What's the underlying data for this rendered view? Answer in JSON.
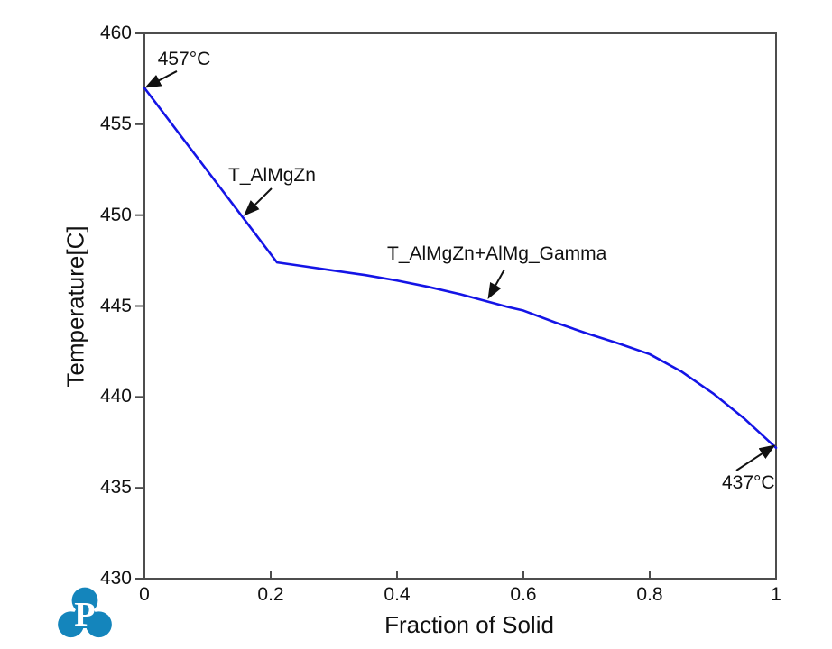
{
  "page": {
    "background": "#ffffff"
  },
  "chart_data": {
    "type": "line",
    "title": "",
    "xlabel": "Fraction of Solid",
    "ylabel": "Temperature[C]",
    "xlim": [
      0,
      1
    ],
    "ylim": [
      430,
      460
    ],
    "grid": false,
    "legend": "none",
    "axis_color": "#4d4d4d",
    "x_ticks": [
      {
        "value": 0,
        "label": "0"
      },
      {
        "value": 0.2,
        "label": "0.2"
      },
      {
        "value": 0.4,
        "label": "0.4"
      },
      {
        "value": 0.6,
        "label": "0.6"
      },
      {
        "value": 0.8,
        "label": "0.8"
      },
      {
        "value": 1,
        "label": "1"
      }
    ],
    "y_ticks": [
      {
        "value": 460,
        "label": "460"
      },
      {
        "value": 455,
        "label": "455"
      },
      {
        "value": 450,
        "label": "450"
      },
      {
        "value": 445,
        "label": "445"
      },
      {
        "value": 440,
        "label": "440"
      },
      {
        "value": 435,
        "label": "435"
      },
      {
        "value": 430,
        "label": "430"
      }
    ],
    "series": [
      {
        "name": "solidification-curve",
        "color": "#1414e6",
        "stroke_width": 2.6,
        "points": [
          [
            0.0,
            457.0
          ],
          [
            0.21,
            447.4
          ],
          [
            0.25,
            447.2
          ],
          [
            0.3,
            446.95
          ],
          [
            0.35,
            446.7
          ],
          [
            0.4,
            446.4
          ],
          [
            0.45,
            446.05
          ],
          [
            0.5,
            445.65
          ],
          [
            0.575,
            444.95
          ],
          [
            0.6,
            444.75
          ],
          [
            0.65,
            444.1
          ],
          [
            0.7,
            443.5
          ],
          [
            0.75,
            442.95
          ],
          [
            0.8,
            442.35
          ],
          [
            0.85,
            441.4
          ],
          [
            0.9,
            440.2
          ],
          [
            0.95,
            438.8
          ],
          [
            1.0,
            437.2
          ]
        ]
      }
    ],
    "annotations": [
      {
        "label": "457°C",
        "text_x": 0.021,
        "text_y": 459.16,
        "arrow_from": [
          0.0514,
          457.92
        ],
        "arrow_to": [
          0.0043,
          457.07
        ]
      },
      {
        "label": "T_AlMgZn",
        "text_x": 0.1329,
        "text_y": 452.76,
        "arrow_from": [
          0.2014,
          451.47
        ],
        "arrow_to": [
          0.16,
          450.05
        ]
      },
      {
        "label": "T_AlMgZn+AlMg_Gamma",
        "text_x": 0.3843,
        "text_y": 448.45,
        "arrow_from": [
          0.57,
          447.01
        ],
        "arrow_to": [
          0.5457,
          445.5
        ]
      },
      {
        "label": "437°C",
        "text_x": 0.9143,
        "text_y": 435.85,
        "arrow_from": [
          0.9371,
          435.95
        ],
        "arrow_to": [
          0.9957,
          437.29
        ]
      }
    ]
  },
  "logo": {
    "name": "pandat-logo",
    "letter": "P",
    "color": "#1485bc"
  }
}
